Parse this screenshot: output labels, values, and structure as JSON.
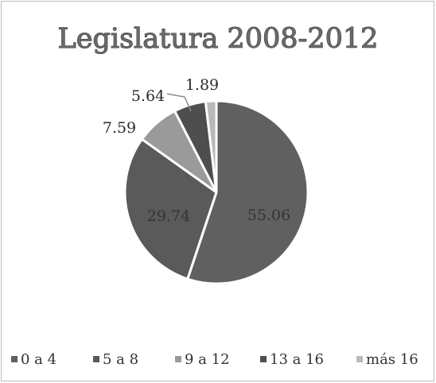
{
  "chart_data": {
    "type": "pie",
    "title": "Legislatura 2008-2012",
    "categories": [
      "0 a 4",
      "5 a 8",
      "9 a 12",
      "13 a 16",
      "más 16"
    ],
    "values": [
      55.06,
      29.74,
      7.59,
      5.64,
      1.89
    ],
    "value_labels": [
      "55.06",
      "29.74",
      "7.59",
      "5.64",
      "1.89"
    ],
    "colors": [
      "#606060",
      "#5a5a5a",
      "#9a9a9a",
      "#4e4e4e",
      "#b9b9b9"
    ],
    "legend_position": "bottom",
    "start_angle_deg": 0,
    "direction": "clockwise"
  }
}
